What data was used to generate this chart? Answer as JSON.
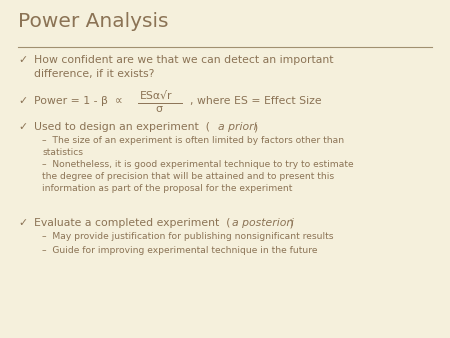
{
  "title": "Power Analysis",
  "title_color": "#8B7355",
  "title_fontsize": 14.5,
  "background_color": "#F5F0DC",
  "text_color": "#8B7355",
  "line_color": "#A09070",
  "fs_main": 7.8,
  "fs_sub": 6.6,
  "bullet1": "How confident are we that we can detect an important\ndifference, if it exists?",
  "sub3a": "The size of an experiment is often limited by factors other than\nstatistics",
  "sub3b": "Nonetheless, it is good experimental technique to try to estimate\nthe degree of precision that will be attained and to present this\ninformation as part of the proposal for the experiment",
  "sub4a": "May provide justification for publishing nonsignificant results",
  "sub4b": "Guide for improving experimental technique in the future"
}
